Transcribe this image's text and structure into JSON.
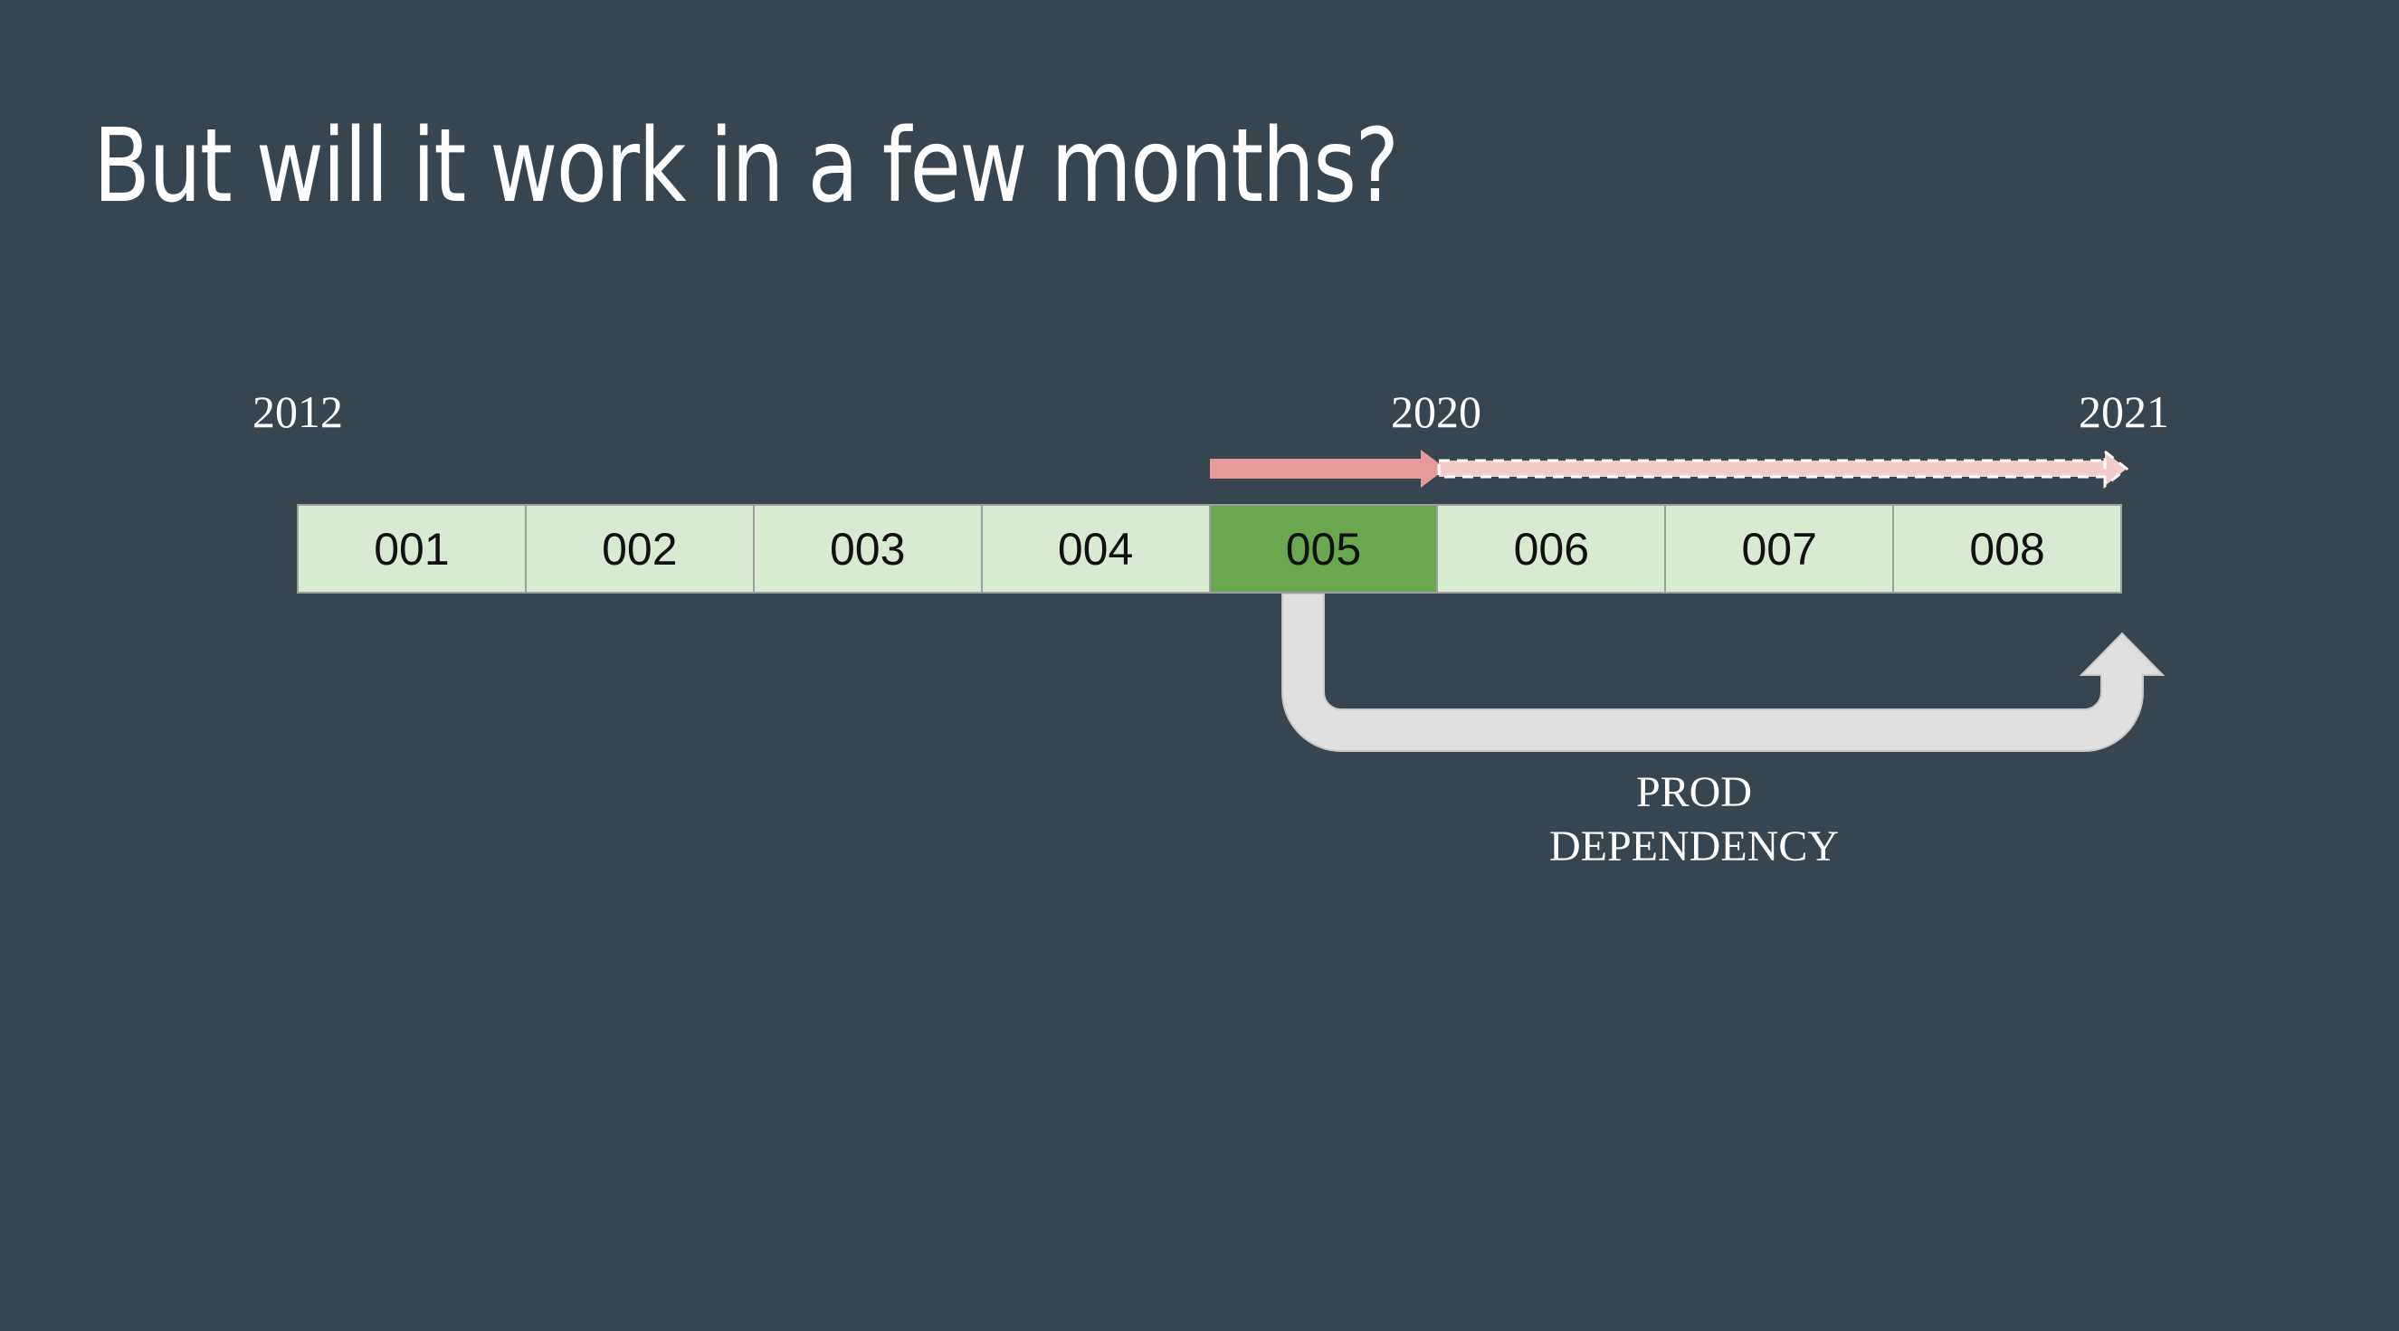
{
  "slide": {
    "title": "But will it work in a few months?"
  },
  "timeline": {
    "years": {
      "start": "2012",
      "current": "2020",
      "future": "2021"
    },
    "blocks": [
      {
        "label": "001",
        "highlighted": false
      },
      {
        "label": "002",
        "highlighted": false
      },
      {
        "label": "003",
        "highlighted": false
      },
      {
        "label": "004",
        "highlighted": false
      },
      {
        "label": "005",
        "highlighted": true
      },
      {
        "label": "006",
        "highlighted": false
      },
      {
        "label": "007",
        "highlighted": false
      },
      {
        "label": "008",
        "highlighted": false
      }
    ]
  },
  "dependency": {
    "label_line1": "PROD",
    "label_line2": "DEPENDENCY"
  },
  "colors": {
    "background": "#36454f",
    "block_fill": "#d9ead3",
    "block_highlight": "#6aa84f",
    "arrow_solid": "#e69a9a",
    "arrow_dashed": "#f4cccc",
    "dependency_arrow": "#e0e0e0"
  }
}
